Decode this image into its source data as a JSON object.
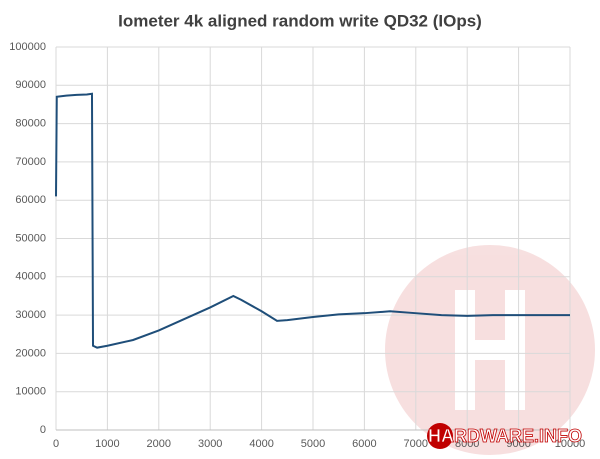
{
  "chart_data": {
    "type": "line",
    "title": "Iometer 4k aligned random write QD32 (IOps)",
    "watermark": "HARDWARE.INFO",
    "x": [
      0,
      15,
      200,
      400,
      600,
      700,
      720,
      800,
      1000,
      1500,
      2000,
      2500,
      3000,
      3450,
      3600,
      4000,
      4300,
      4500,
      5000,
      5500,
      6000,
      6500,
      7000,
      7500,
      8000,
      8500,
      9000,
      9500,
      10000
    ],
    "series": [
      {
        "name": "IOps",
        "color": "#1f4e79",
        "values": [
          61000,
          87000,
          87300,
          87500,
          87600,
          87800,
          22000,
          21500,
          22000,
          23500,
          26000,
          29000,
          32000,
          35000,
          34000,
          31000,
          28500,
          28700,
          29500,
          30200,
          30500,
          31000,
          30500,
          30000,
          29800,
          30000,
          30000,
          30000,
          30000
        ]
      }
    ],
    "xlim": [
      0,
      10000
    ],
    "xticks": [
      0,
      1000,
      2000,
      3000,
      4000,
      5000,
      6000,
      7000,
      8000,
      9000,
      10000
    ],
    "ylim": [
      0,
      100000
    ],
    "yticks": [
      0,
      10000,
      20000,
      30000,
      40000,
      50000,
      60000,
      70000,
      80000,
      90000,
      100000
    ],
    "grid": true
  }
}
